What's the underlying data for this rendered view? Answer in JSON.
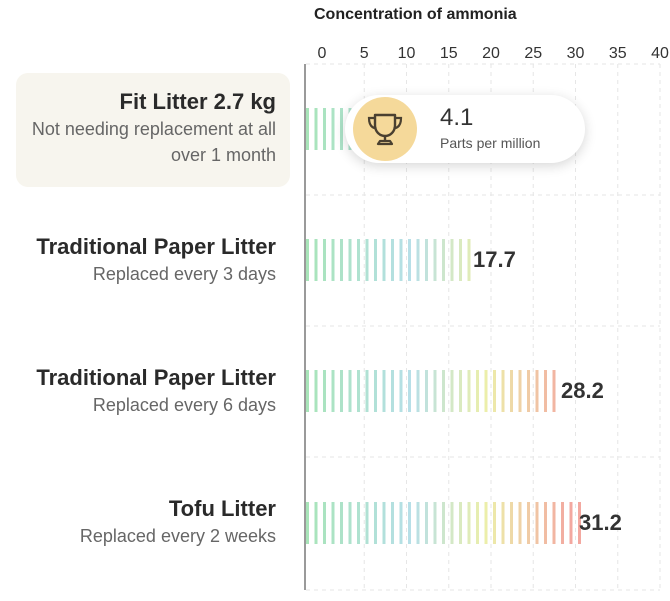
{
  "chart_data": {
    "type": "bar",
    "orientation": "horizontal",
    "title": "Concentration of ammonia",
    "xlim": [
      0,
      40
    ],
    "xticks": [
      0,
      5,
      10,
      15,
      20,
      25,
      30,
      35,
      40
    ],
    "grid": true,
    "categories": [
      {
        "name": "Fit Litter 2.7 kg",
        "subtitle": "Not needing replacement at all over 1 month",
        "value": 4.1,
        "highlighted": true
      },
      {
        "name": "Traditional Paper Litter",
        "subtitle": "Replaced every 3 days",
        "value": 17.7
      },
      {
        "name": "Traditional Paper Litter",
        "subtitle": "Replaced every 6 days",
        "value": 28.2
      },
      {
        "name": "Tofu Litter",
        "subtitle": "Replaced every 2 weeks",
        "value": 31.2
      }
    ],
    "callout": {
      "value": "4.1",
      "unit": "Parts per million",
      "icon": "trophy-icon"
    },
    "colors": {
      "gradient": [
        "#a8e4b8",
        "#b6dfe8",
        "#ecefaa",
        "#f3a8a0"
      ],
      "highlight_bg": "#f7f5ee",
      "trophy_bg": "#f5d99a"
    }
  }
}
